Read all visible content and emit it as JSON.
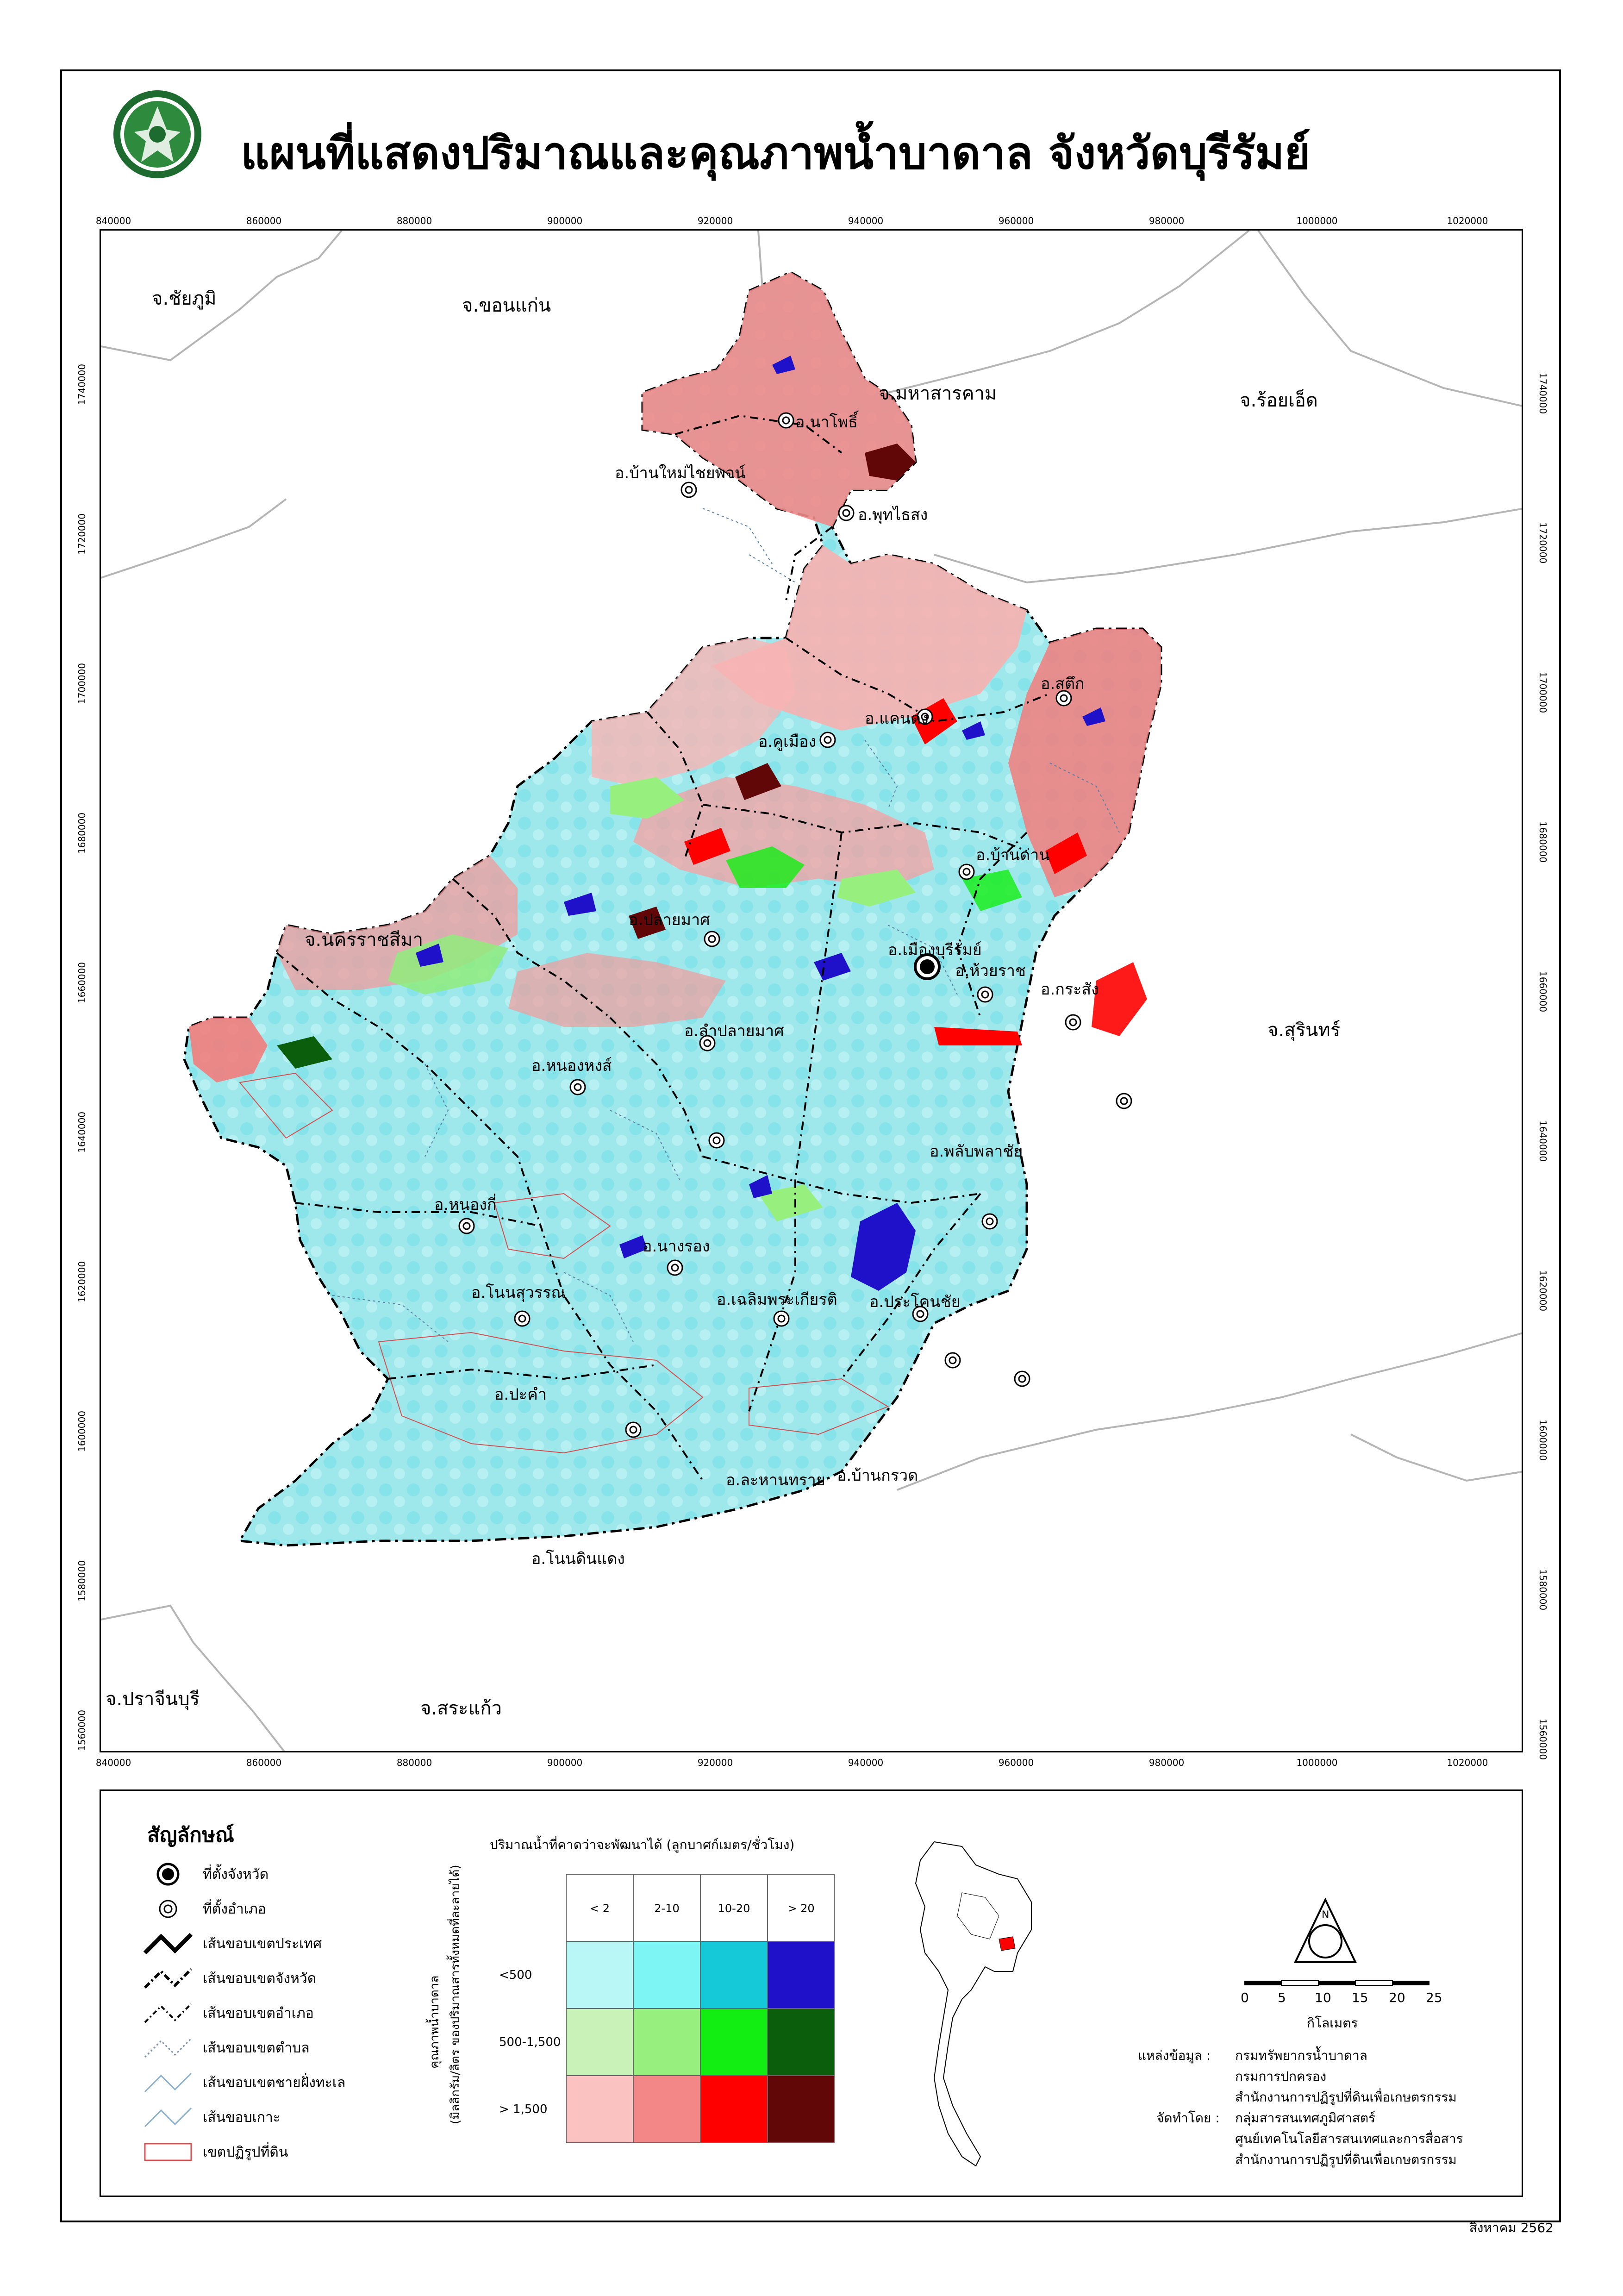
{
  "title": "แผนที่แสดงปริมาณและคุณภาพน้ำบาดาล จังหวัดบุรีรัมย์",
  "seal_text": "สำนักงานการปฏิรูปที่ดินเพื่อเกษตรกรรม",
  "x_ticks": [
    "840000",
    "860000",
    "880000",
    "900000",
    "920000",
    "940000",
    "960000",
    "980000",
    "1000000",
    "1020000"
  ],
  "y_ticks": [
    "1740000",
    "1720000",
    "1700000",
    "1680000",
    "1660000",
    "1640000",
    "1620000",
    "1600000",
    "1580000",
    "1560000"
  ],
  "neighbors": [
    "จ.ชัยภูมิ",
    "จ.ขอนแก่น",
    "จ.มหาสารคาม",
    "จ.ร้อยเอ็ด",
    "จ.นครราชสีมา",
    "จ.สุรินทร์",
    "จ.ปราจีนบุรี",
    "จ.สระแก้ว"
  ],
  "districts": [
    "อ.นาโพธิ์",
    "อ.บ้านใหม่ไชยพจน์",
    "อ.พุทไธสง",
    "อ.สตึก",
    "อ.คูเมือง",
    "อ.แคนดง",
    "อ.บ้านด่าน",
    "อ.ปลายมาศ",
    "อ.เมืองบุรีรัมย์",
    "อ.ห้วยราช",
    "อ.กระสัง",
    "อ.หนองหงส์",
    "อ.ลำปลายมาศ",
    "อ.พลับพลาชัย",
    "อ.หนองกี่",
    "อ.นางรอง",
    "อ.โนนสุวรรณ",
    "อ.เฉลิมพระเกียรติ",
    "อ.ประโคนชัย",
    "อ.ปะคำ",
    "อ.บ้านกรวด",
    "อ.ละหานทราย",
    "อ.โนนดินแดง"
  ],
  "legend": {
    "title": "สัญลักษณ์",
    "items": [
      "ที่ตั้งจังหวัด",
      "ที่ตั้งอำเภอ",
      "เส้นขอบเขตประเทศ",
      "เส้นขอบเขตจังหวัด",
      "เส้นขอบเขตอำเภอ",
      "เส้นขอบเขตตำบล",
      "เส้นขอบเขตชายฝั่งทะเล",
      "เส้นขอบเกาะ",
      "เขตปฏิรูปที่ดิน"
    ]
  },
  "matrix": {
    "title": "ปริมาณน้ำที่คาดว่าจะพัฒนาได้ (ลูกบาศก์เมตร/ชั่วโมง)",
    "col_heads": [
      "< 2",
      "2-10",
      "10-20",
      "> 20"
    ],
    "row_heads": [
      "<500",
      "500-1,500",
      "> 1,500"
    ],
    "vert_label_1": "คุณภาพน้ำบาดาล",
    "vert_label_2": "(มิลลิกรัม/ลิตร ของปริมาณสารทั้งหมดที่ละลายได้)",
    "colors": [
      [
        "#b9f6f6",
        "#7ef5f5",
        "#16c9d9",
        "#1f10c9"
      ],
      [
        "#c8f2b7",
        "#97f07e",
        "#12ee12",
        "#0b5e0b"
      ],
      [
        "#fbc2c2",
        "#f38787",
        "#ff0000",
        "#620707"
      ]
    ]
  },
  "scale": {
    "ticks": [
      "0",
      "5",
      "10",
      "15",
      "20",
      "25"
    ],
    "unit": "กิโลเมตร"
  },
  "north_letters": "N",
  "sources": {
    "label1": "แหล่งข้อมูล :",
    "lines1": [
      "กรมทรัพยากรน้ำบาดาล",
      "กรมการปกครอง",
      "สำนักงานการปฏิรูปที่ดินเพื่อเกษตรกรรม"
    ],
    "label2": "จัดทำโดย :",
    "lines2": [
      "กลุ่มสารสนเทศภูมิศาสตร์",
      "ศูนย์เทคโนโลยีสารสนเทศและการสื่อสาร",
      "สำนักงานการปฏิรูปที่ดินเพื่อเกษตรกรรม"
    ]
  },
  "date": "สิงหาคม 2562"
}
